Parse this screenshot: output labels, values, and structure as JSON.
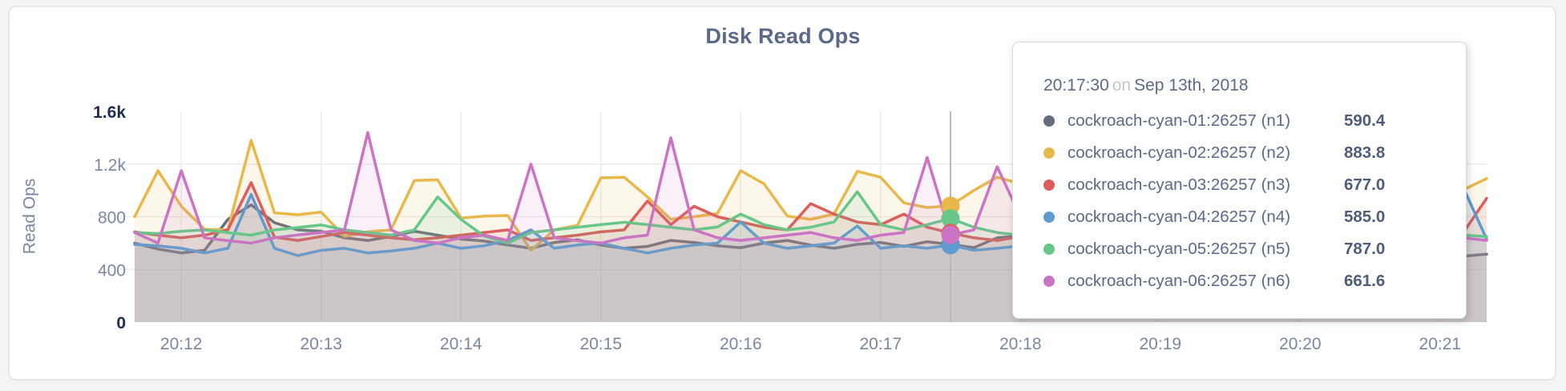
{
  "panel": {
    "background": "#ffffff",
    "page_background": "#f4f4f5"
  },
  "chart_data": {
    "type": "line",
    "title": "Disk Read Ops",
    "ylabel": "Read Ops",
    "xlabel": "",
    "grid": true,
    "legend_position": "tooltip",
    "ylim": [
      0,
      1600
    ],
    "x_start_label": "20:11:40",
    "x_interval_seconds": 10,
    "y_ticks": [
      {
        "label": "0",
        "value": 0,
        "strong": true
      },
      {
        "label": "400",
        "value": 400,
        "strong": false
      },
      {
        "label": "800",
        "value": 800,
        "strong": false
      },
      {
        "label": "1.2k",
        "value": 1200,
        "strong": false
      },
      {
        "label": "1.6k",
        "value": 1600,
        "strong": true
      }
    ],
    "x_ticks": [
      {
        "label": "20:12",
        "index": 2
      },
      {
        "label": "20:13",
        "index": 8
      },
      {
        "label": "20:14",
        "index": 14
      },
      {
        "label": "20:15",
        "index": 20
      },
      {
        "label": "20:16",
        "index": 26
      },
      {
        "label": "20:17",
        "index": 32
      },
      {
        "label": "20:18",
        "index": 38
      },
      {
        "label": "20:19",
        "index": 44
      },
      {
        "label": "20:20",
        "index": 50
      },
      {
        "label": "20:21",
        "index": 56
      }
    ],
    "series": [
      {
        "name": "cockroach-cyan-01:26257 (n1)",
        "color": "#646c80",
        "values": [
          600,
          555,
          525,
          545,
          780,
          890,
          755,
          700,
          690,
          640,
          620,
          650,
          690,
          660,
          630,
          615,
          585,
          560,
          605,
          625,
          585,
          560,
          575,
          620,
          605,
          580,
          565,
          600,
          620,
          585,
          560,
          590,
          605,
          575,
          610,
          590.4,
          565,
          640,
          655,
          615,
          580,
          560,
          545,
          565,
          585,
          600,
          560,
          540,
          525,
          560,
          580,
          545,
          520,
          505,
          485,
          520,
          540,
          500,
          515
        ]
      },
      {
        "name": "cockroach-cyan-02:26257 (n2)",
        "color": "#e8b84b",
        "values": [
          800,
          1150,
          880,
          705,
          700,
          1380,
          830,
          815,
          835,
          650,
          685,
          700,
          1075,
          1080,
          790,
          805,
          810,
          545,
          700,
          735,
          1095,
          1100,
          950,
          780,
          800,
          825,
          1150,
          1050,
          805,
          780,
          820,
          1145,
          1100,
          905,
          870,
          883.8,
          1000,
          1100,
          1050,
          905,
          850,
          900,
          950,
          880,
          820,
          860,
          900,
          870,
          840,
          880,
          920,
          860,
          830,
          870,
          900,
          950,
          1000,
          1005,
          1090
        ]
      },
      {
        "name": "cockroach-cyan-03:26257 (n3)",
        "color": "#dd5f5c",
        "values": [
          685,
          660,
          640,
          660,
          700,
          1060,
          645,
          620,
          650,
          680,
          660,
          640,
          625,
          640,
          660,
          680,
          700,
          620,
          640,
          660,
          685,
          700,
          920,
          740,
          880,
          800,
          760,
          720,
          700,
          900,
          820,
          760,
          740,
          820,
          720,
          677,
          640,
          620,
          650,
          700,
          680,
          660,
          640,
          660,
          680,
          700,
          660,
          640,
          620,
          660,
          680,
          640,
          620,
          640,
          660,
          680,
          640,
          680,
          940
        ]
      },
      {
        "name": "cockroach-cyan-04:26257 (n4)",
        "color": "#5f9bd1",
        "values": [
          590,
          580,
          560,
          525,
          560,
          970,
          560,
          505,
          545,
          560,
          525,
          540,
          560,
          600,
          560,
          580,
          620,
          700,
          560,
          585,
          600,
          560,
          525,
          560,
          585,
          600,
          760,
          600,
          560,
          580,
          600,
          730,
          560,
          580,
          560,
          585,
          545,
          560,
          580,
          600,
          560,
          540,
          560,
          580,
          600,
          560,
          540,
          525,
          560,
          580,
          600,
          560,
          540,
          560,
          580,
          600,
          560,
          1020,
          630
        ]
      },
      {
        "name": "cockroach-cyan-05:26257 (n5)",
        "color": "#68c788",
        "values": [
          680,
          672,
          690,
          700,
          680,
          660,
          700,
          718,
          738,
          700,
          680,
          660,
          700,
          950,
          780,
          652,
          600,
          680,
          700,
          720,
          740,
          758,
          740,
          720,
          700,
          722,
          820,
          740,
          700,
          720,
          760,
          990,
          740,
          700,
          740,
          787,
          720,
          680,
          660,
          700,
          720,
          740,
          700,
          680,
          700,
          720,
          700,
          680,
          660,
          700,
          720,
          700,
          680,
          660,
          700,
          720,
          680,
          660,
          650
        ]
      },
      {
        "name": "cockroach-cyan-06:26257 (n6)",
        "color": "#cb74c4",
        "values": [
          680,
          600,
          1150,
          640,
          618,
          600,
          640,
          662,
          680,
          700,
          1440,
          700,
          620,
          600,
          640,
          660,
          620,
          1200,
          640,
          618,
          600,
          640,
          660,
          1400,
          700,
          640,
          620,
          640,
          660,
          680,
          640,
          620,
          660,
          680,
          1250,
          661.6,
          700,
          1180,
          800,
          700,
          660,
          640,
          660,
          680,
          700,
          660,
          640,
          620,
          660,
          680,
          700,
          660,
          640,
          660,
          680,
          700,
          660,
          640,
          620
        ]
      }
    ]
  },
  "tooltip": {
    "time": "20:17:30",
    "connector": "on",
    "date": "Sep 13th, 2018",
    "hover_index": 35,
    "rows": [
      {
        "label": "cockroach-cyan-01:26257 (n1)",
        "value": "590.4",
        "color": "#646c80"
      },
      {
        "label": "cockroach-cyan-02:26257 (n2)",
        "value": "883.8",
        "color": "#e8b84b"
      },
      {
        "label": "cockroach-cyan-03:26257 (n3)",
        "value": "677.0",
        "color": "#dd5f5c"
      },
      {
        "label": "cockroach-cyan-04:26257 (n4)",
        "value": "585.0",
        "color": "#5f9bd1"
      },
      {
        "label": "cockroach-cyan-05:26257 (n5)",
        "value": "787.0",
        "color": "#68c788"
      },
      {
        "label": "cockroach-cyan-06:26257 (n6)",
        "value": "661.6",
        "color": "#cb74c4"
      }
    ]
  },
  "style": {
    "grid_color": "#ececec",
    "hover_line_color": "#b8b8b8",
    "axis_text_color": "#7b87a1",
    "axis_strong_text_color": "#1e2c4f",
    "title_color": "#5a6987"
  }
}
